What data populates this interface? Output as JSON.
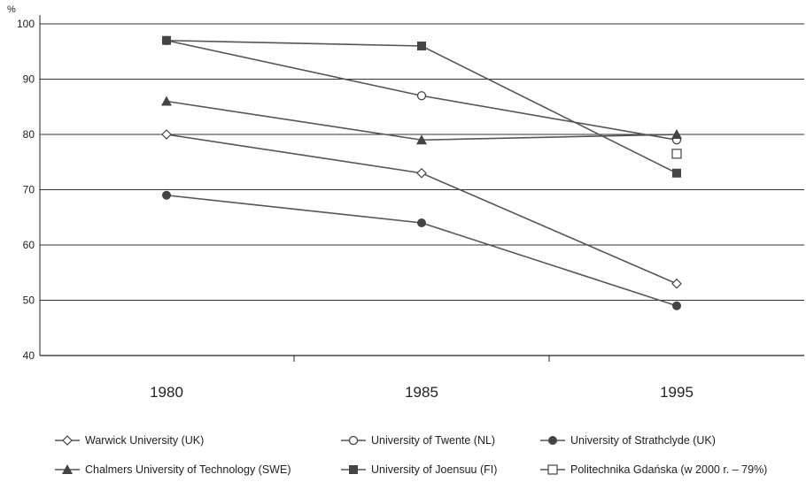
{
  "chart_data": {
    "type": "line",
    "title": "",
    "xlabel": "",
    "ylabel": "%",
    "ylim": [
      40,
      100
    ],
    "yticks": [
      40,
      50,
      60,
      70,
      80,
      90,
      100
    ],
    "grid": true,
    "legend_placement": "bottom",
    "categories": [
      "1980",
      "1985",
      "1995"
    ],
    "series": [
      {
        "name": "Warwick University (UK)",
        "marker": "diamond-open",
        "values": [
          80,
          73,
          53
        ]
      },
      {
        "name": "University of Twente (NL)",
        "marker": "circle-open",
        "values": [
          97,
          87,
          79
        ]
      },
      {
        "name": "University of Strathclyde (UK)",
        "marker": "circle-filled",
        "values": [
          69,
          64,
          49
        ]
      },
      {
        "name": "Chalmers University of Technology (SWE)",
        "marker": "triangle-filled",
        "values": [
          86,
          79,
          80
        ]
      },
      {
        "name": "University of Joensuu (FI)",
        "marker": "square-filled",
        "values": [
          97,
          96,
          73
        ]
      },
      {
        "name": "Politechnika Gdańska (w 2000 r. – 79%)",
        "marker": "square-open",
        "values": [
          null,
          null,
          76.5
        ]
      }
    ],
    "colors": {
      "line": "#555555",
      "marker": "#444444",
      "grid": "#333333"
    }
  }
}
